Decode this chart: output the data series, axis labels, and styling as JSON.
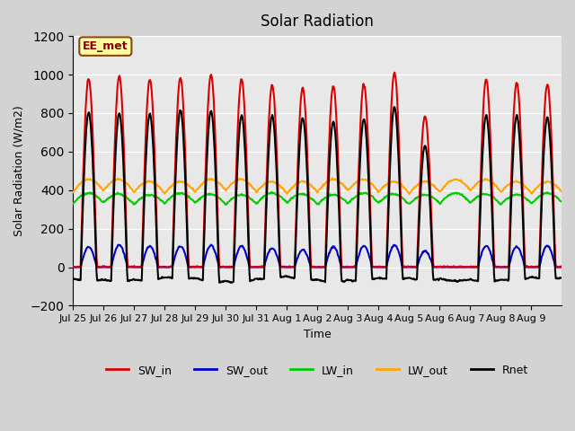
{
  "title": "Solar Radiation",
  "ylabel": "Solar Radiation (W/m2)",
  "xlabel": "Time",
  "ylim": [
    -200,
    1200
  ],
  "yticks": [
    -200,
    0,
    200,
    400,
    600,
    800,
    1000,
    1200
  ],
  "xtick_labels": [
    "Jul 25",
    "Jul 26",
    "Jul 27",
    "Jul 28",
    "Jul 29",
    "Jul 30",
    "Jul 31",
    "Aug 1",
    "Aug 2",
    "Aug 3",
    "Aug 4",
    "Aug 5",
    "Aug 6",
    "Aug 7",
    "Aug 8",
    "Aug 9"
  ],
  "annotation_text": "EE_met",
  "annotation_bg": "#FFFFA0",
  "annotation_border": "#8B4513",
  "series": {
    "SW_in": {
      "color": "#DD0000",
      "lw": 1.5
    },
    "SW_out": {
      "color": "#0000CC",
      "lw": 1.5
    },
    "LW_in": {
      "color": "#00CC00",
      "lw": 1.5
    },
    "LW_out": {
      "color": "#FFA500",
      "lw": 1.5
    },
    "Rnet": {
      "color": "#000000",
      "lw": 1.5
    }
  },
  "bg_color": "#D3D3D3",
  "plot_bg": "#E8E8E8",
  "n_days": 16,
  "pts_per_day": 48,
  "SW_in_peaks": [
    980,
    990,
    975,
    985,
    1000,
    975,
    945,
    930,
    940,
    950,
    1010,
    785,
    0,
    975,
    960,
    950
  ],
  "SW_out_peaks": [
    105,
    115,
    110,
    108,
    112,
    108,
    100,
    90,
    105,
    110,
    115,
    85,
    0,
    110,
    105,
    112
  ],
  "LW_in_base": 330,
  "LW_in_amp": 50,
  "LW_out_base": 390,
  "LW_out_amp": 60,
  "legend_labels": [
    "SW_in",
    "SW_out",
    "LW_in",
    "LW_out",
    "Rnet"
  ]
}
